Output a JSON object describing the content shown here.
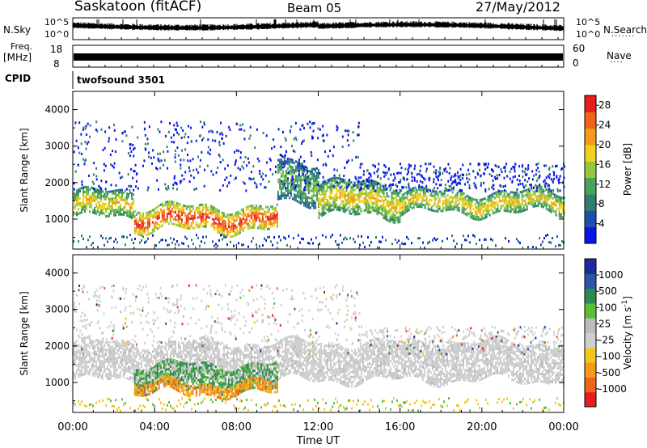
{
  "header": {
    "station": "Saskatoon (fitACF)",
    "beam": "Beam 05",
    "date": "27/May/2012"
  },
  "panels": {
    "nsky": {
      "label": "N.Sky",
      "y_top": "10^5",
      "y_bottom": "10^0",
      "right_label": "N.Search",
      "right_dots": "·······",
      "right_top": "10^5",
      "right_bottom": "10^0"
    },
    "freq": {
      "label_line1": "Freq.",
      "label_line2": "[MHz]",
      "y_top": "18",
      "y_bottom": "8",
      "right_top": "60",
      "right_bottom": "0",
      "right_label": "Nave",
      "right_dots": "····"
    },
    "cpid": {
      "label": "CPID",
      "value": "twofsound 3501"
    }
  },
  "colors": {
    "power": [
      "#0a14e6",
      "#1f4fae",
      "#2f7f6a",
      "#49a35a",
      "#95c83c",
      "#f0d21e",
      "#f59a19",
      "#f0641a",
      "#e61e1e"
    ],
    "velocity": [
      "#e61e1e",
      "#f0641a",
      "#f59a19",
      "#f0c81e",
      "#cfcfcf",
      "#bcbcbc",
      "#5abf37",
      "#2f8a4f",
      "#2a58a6",
      "#1f2a9e"
    ],
    "axis": "#000000",
    "background": "#ffffff"
  },
  "chart_data": [
    {
      "type": "heatmap",
      "id": "power",
      "title": "",
      "xlabel": "",
      "ylabel": "Slant Range [km]",
      "x_domain": [
        "27/May/2012 00:00",
        "28/May/2012 00:00"
      ],
      "ylim": [
        180,
        4500
      ],
      "x_ticks": [
        "00:00",
        "04:00",
        "08:00",
        "12:00",
        "16:00",
        "20:00",
        "00:00"
      ],
      "y_ticks": [
        1000,
        2000,
        3000,
        4000
      ],
      "colorbar": {
        "label": "Power [dB]",
        "ticks": [
          "4",
          "8",
          "12",
          "16",
          "20",
          "24",
          "28"
        ],
        "range": [
          0,
          30
        ]
      },
      "echo_bands": [
        {
          "hours": [
            0,
            3
          ],
          "range_km": [
            1050,
            1750
          ],
          "level_dB": 20
        },
        {
          "hours": [
            3,
            10
          ],
          "range_km": [
            700,
            1350
          ],
          "level_dB": 28
        },
        {
          "hours": [
            10,
            12
          ],
          "range_km": [
            1500,
            2600
          ],
          "level_dB": 14
        },
        {
          "hours": [
            12,
            16
          ],
          "range_km": [
            1100,
            2000
          ],
          "level_dB": 20
        },
        {
          "hours": [
            16,
            24
          ],
          "range_km": [
            1200,
            1750
          ],
          "level_dB": 20
        }
      ]
    },
    {
      "type": "heatmap",
      "id": "velocity",
      "title": "",
      "xlabel": "Time UT",
      "ylabel": "Slant Range [km]",
      "x_domain": [
        "27/May/2012 00:00",
        "28/May/2012 00:00"
      ],
      "ylim": [
        180,
        4500
      ],
      "x_ticks": [
        "00:00",
        "04:00",
        "08:00",
        "12:00",
        "16:00",
        "20:00",
        "00:00"
      ],
      "y_ticks": [
        1000,
        2000,
        3000,
        4000
      ],
      "colorbar": {
        "label": "Velocity [m s^-1]",
        "ticks": [
          "1000",
          "500",
          "100",
          "25",
          "-25",
          "-100",
          "-500",
          "-1000"
        ],
        "range": [
          -1000,
          1000
        ]
      },
      "echo_bands": [
        {
          "hours": [
            0,
            24
          ],
          "range_km": [
            1100,
            2100
          ],
          "velocity_ms": 0
        },
        {
          "hours": [
            3,
            10
          ],
          "range_km": [
            800,
            1500
          ],
          "velocity_ms": 100
        },
        {
          "hours": [
            3,
            10
          ],
          "range_km": [
            700,
            1000
          ],
          "velocity_ms": -300
        }
      ]
    }
  ]
}
